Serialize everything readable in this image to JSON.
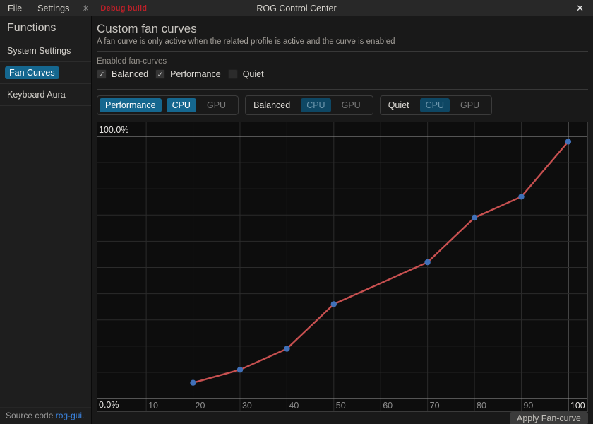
{
  "titlebar": {
    "menus": [
      {
        "label": "File"
      },
      {
        "label": "Settings"
      }
    ],
    "app_icon": "✳",
    "debug_badge": "Debug build",
    "title": "ROG Control Center",
    "close_icon": "✕"
  },
  "sidebar": {
    "header": "Functions",
    "items": [
      {
        "label": "System Settings",
        "active": false
      },
      {
        "label": "Fan Curves",
        "active": true
      },
      {
        "label": "Keyboard Aura",
        "active": false
      }
    ],
    "footer": {
      "text": "Source code",
      "link": "rog-gui."
    }
  },
  "main": {
    "title": "Custom fan curves",
    "subtitle": "A fan curve is only active when the related profile is active and the curve is enabled",
    "enabled_section_label": "Enabled fan-curves",
    "check_icon": "✓",
    "checkboxes": [
      {
        "label": "Balanced",
        "checked": true
      },
      {
        "label": "Performance",
        "checked": true
      },
      {
        "label": "Quiet",
        "checked": false
      }
    ],
    "profile_tabs": [
      {
        "profile": "Performance",
        "profile_active": true,
        "devices": [
          {
            "label": "CPU",
            "active": true,
            "dimmed": false
          },
          {
            "label": "GPU",
            "active": false
          }
        ]
      },
      {
        "profile": "Balanced",
        "profile_active": false,
        "devices": [
          {
            "label": "CPU",
            "active": true,
            "dimmed": true
          },
          {
            "label": "GPU",
            "active": false
          }
        ]
      },
      {
        "profile": "Quiet",
        "profile_active": false,
        "devices": [
          {
            "label": "CPU",
            "active": true,
            "dimmed": true
          },
          {
            "label": "GPU",
            "active": false
          }
        ]
      }
    ],
    "apply_button": "Apply Fan-curve"
  },
  "chart_data": {
    "type": "line",
    "series_name": "Performance CPU fan curve",
    "x": [
      20,
      30,
      40,
      50,
      70,
      80,
      90,
      100
    ],
    "y": [
      6,
      11,
      19,
      36,
      52,
      69,
      77,
      98
    ],
    "x_ticks": [
      10,
      20,
      30,
      40,
      50,
      60,
      70,
      80,
      90,
      100
    ],
    "highlighted_x_tick": 100,
    "y_axis_top_label": "100.0%",
    "y_axis_bottom_label": "0.0%",
    "xlim": [
      0,
      104.5
    ],
    "ylim": [
      0,
      105
    ],
    "grid": true,
    "grid_color": "#2b2b2b",
    "highlight_grid_color": "#9a9a9a",
    "line_color": "#c75050",
    "point_color": "#4070b8",
    "tick_label_color": "#8c8c8c",
    "highlight_label_color": "#e8e6e3"
  }
}
